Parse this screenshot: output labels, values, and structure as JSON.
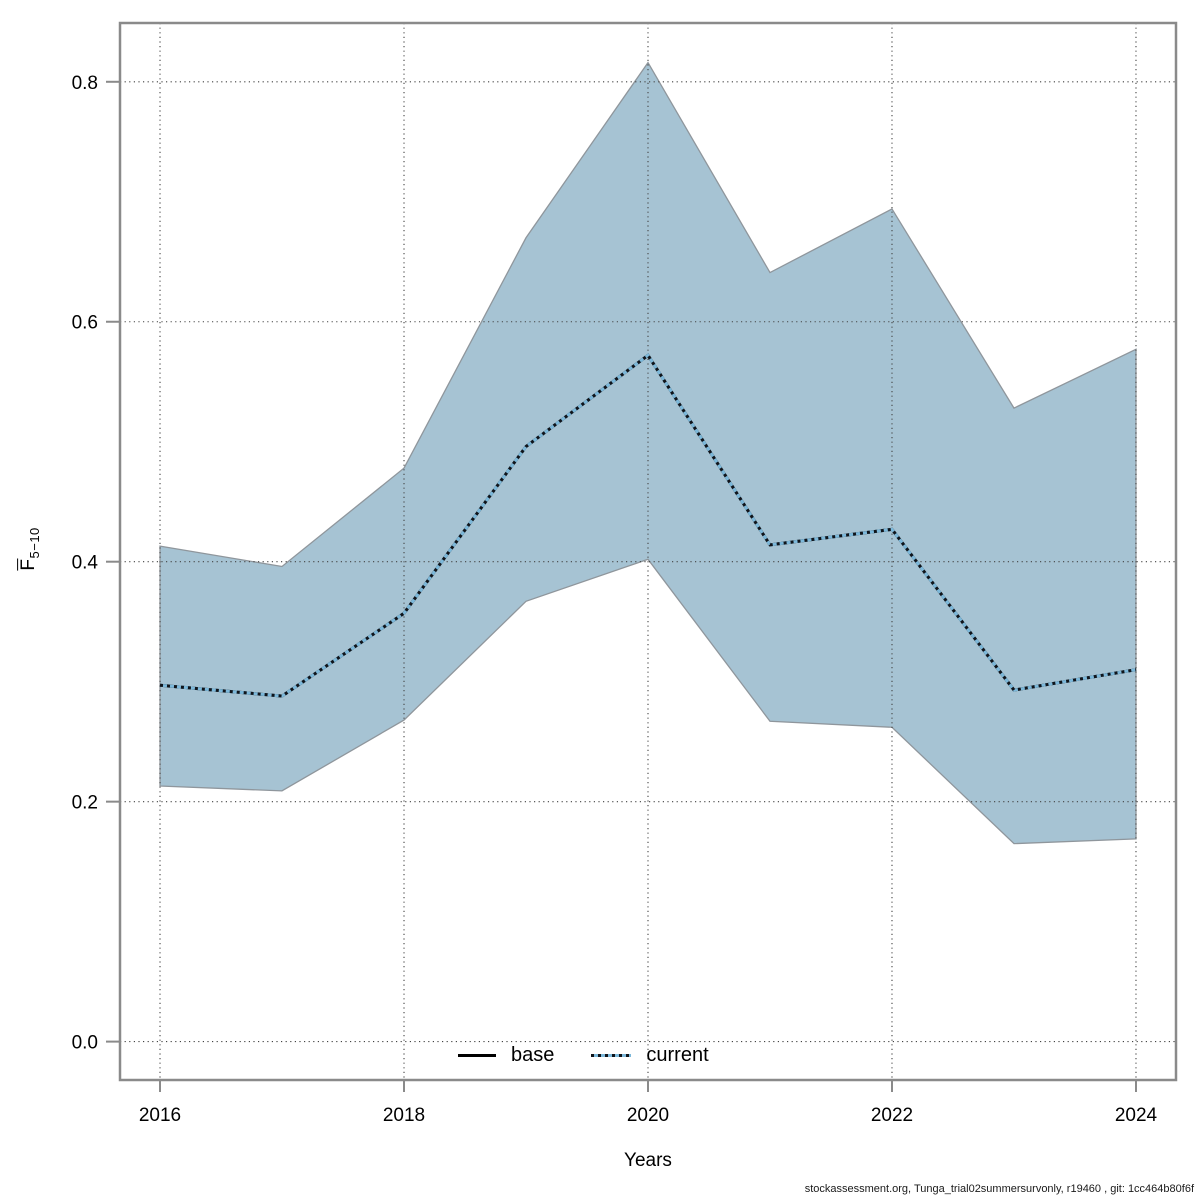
{
  "page": {
    "background": "#ffffff"
  },
  "footer": {
    "text": "stockassessment.org, Tunga_trial02summersurvonly, r19460 , git: 1cc464b80f6f"
  },
  "legend": {
    "items": [
      "base",
      "current"
    ]
  },
  "chart_data": {
    "type": "area",
    "title": "",
    "xlabel": "Years",
    "ylabel": "F̄5−10",
    "ylabel_main": "F",
    "ylabel_sub": "5−10",
    "x": [
      2016,
      2017,
      2018,
      2019,
      2020,
      2021,
      2022,
      2023,
      2024
    ],
    "x_ticks": [
      2016,
      2018,
      2020,
      2022,
      2024
    ],
    "x_tick_labels": [
      "2016",
      "2018",
      "2020",
      "2022",
      "2024"
    ],
    "y_ticks": [
      0.0,
      0.2,
      0.4,
      0.6,
      0.8
    ],
    "y_tick_labels": [
      "0.0",
      "0.2",
      "0.4",
      "0.6",
      "0.8"
    ],
    "xlim": [
      2015.672,
      2024.328
    ],
    "ylim": [
      -0.032,
      0.849
    ],
    "grid": true,
    "legend_position": "bottom-center-inside",
    "band": {
      "name": "confidence-interval",
      "low": [
        0.213,
        0.209,
        0.268,
        0.367,
        0.402,
        0.267,
        0.262,
        0.165,
        0.169
      ],
      "high": [
        0.413,
        0.396,
        0.478,
        0.67,
        0.816,
        0.641,
        0.694,
        0.528,
        0.577
      ],
      "fill": "#a6c3d3",
      "edge": "#8f969c"
    },
    "series": [
      {
        "name": "base",
        "style": "solid",
        "color": "#000000",
        "values": [
          0.297,
          0.288,
          0.357,
          0.496,
          0.572,
          0.414,
          0.427,
          0.293,
          0.31
        ]
      },
      {
        "name": "current",
        "style": "dotted",
        "color": "#10141a",
        "underlay_color": "#7cb8da",
        "values": [
          0.297,
          0.288,
          0.357,
          0.496,
          0.572,
          0.414,
          0.427,
          0.293,
          0.31
        ]
      }
    ],
    "colors": {
      "frame": "#8a8a8a",
      "tick": "#8a8a8a",
      "gridline": "#444444",
      "tick_label": "#000000"
    }
  }
}
